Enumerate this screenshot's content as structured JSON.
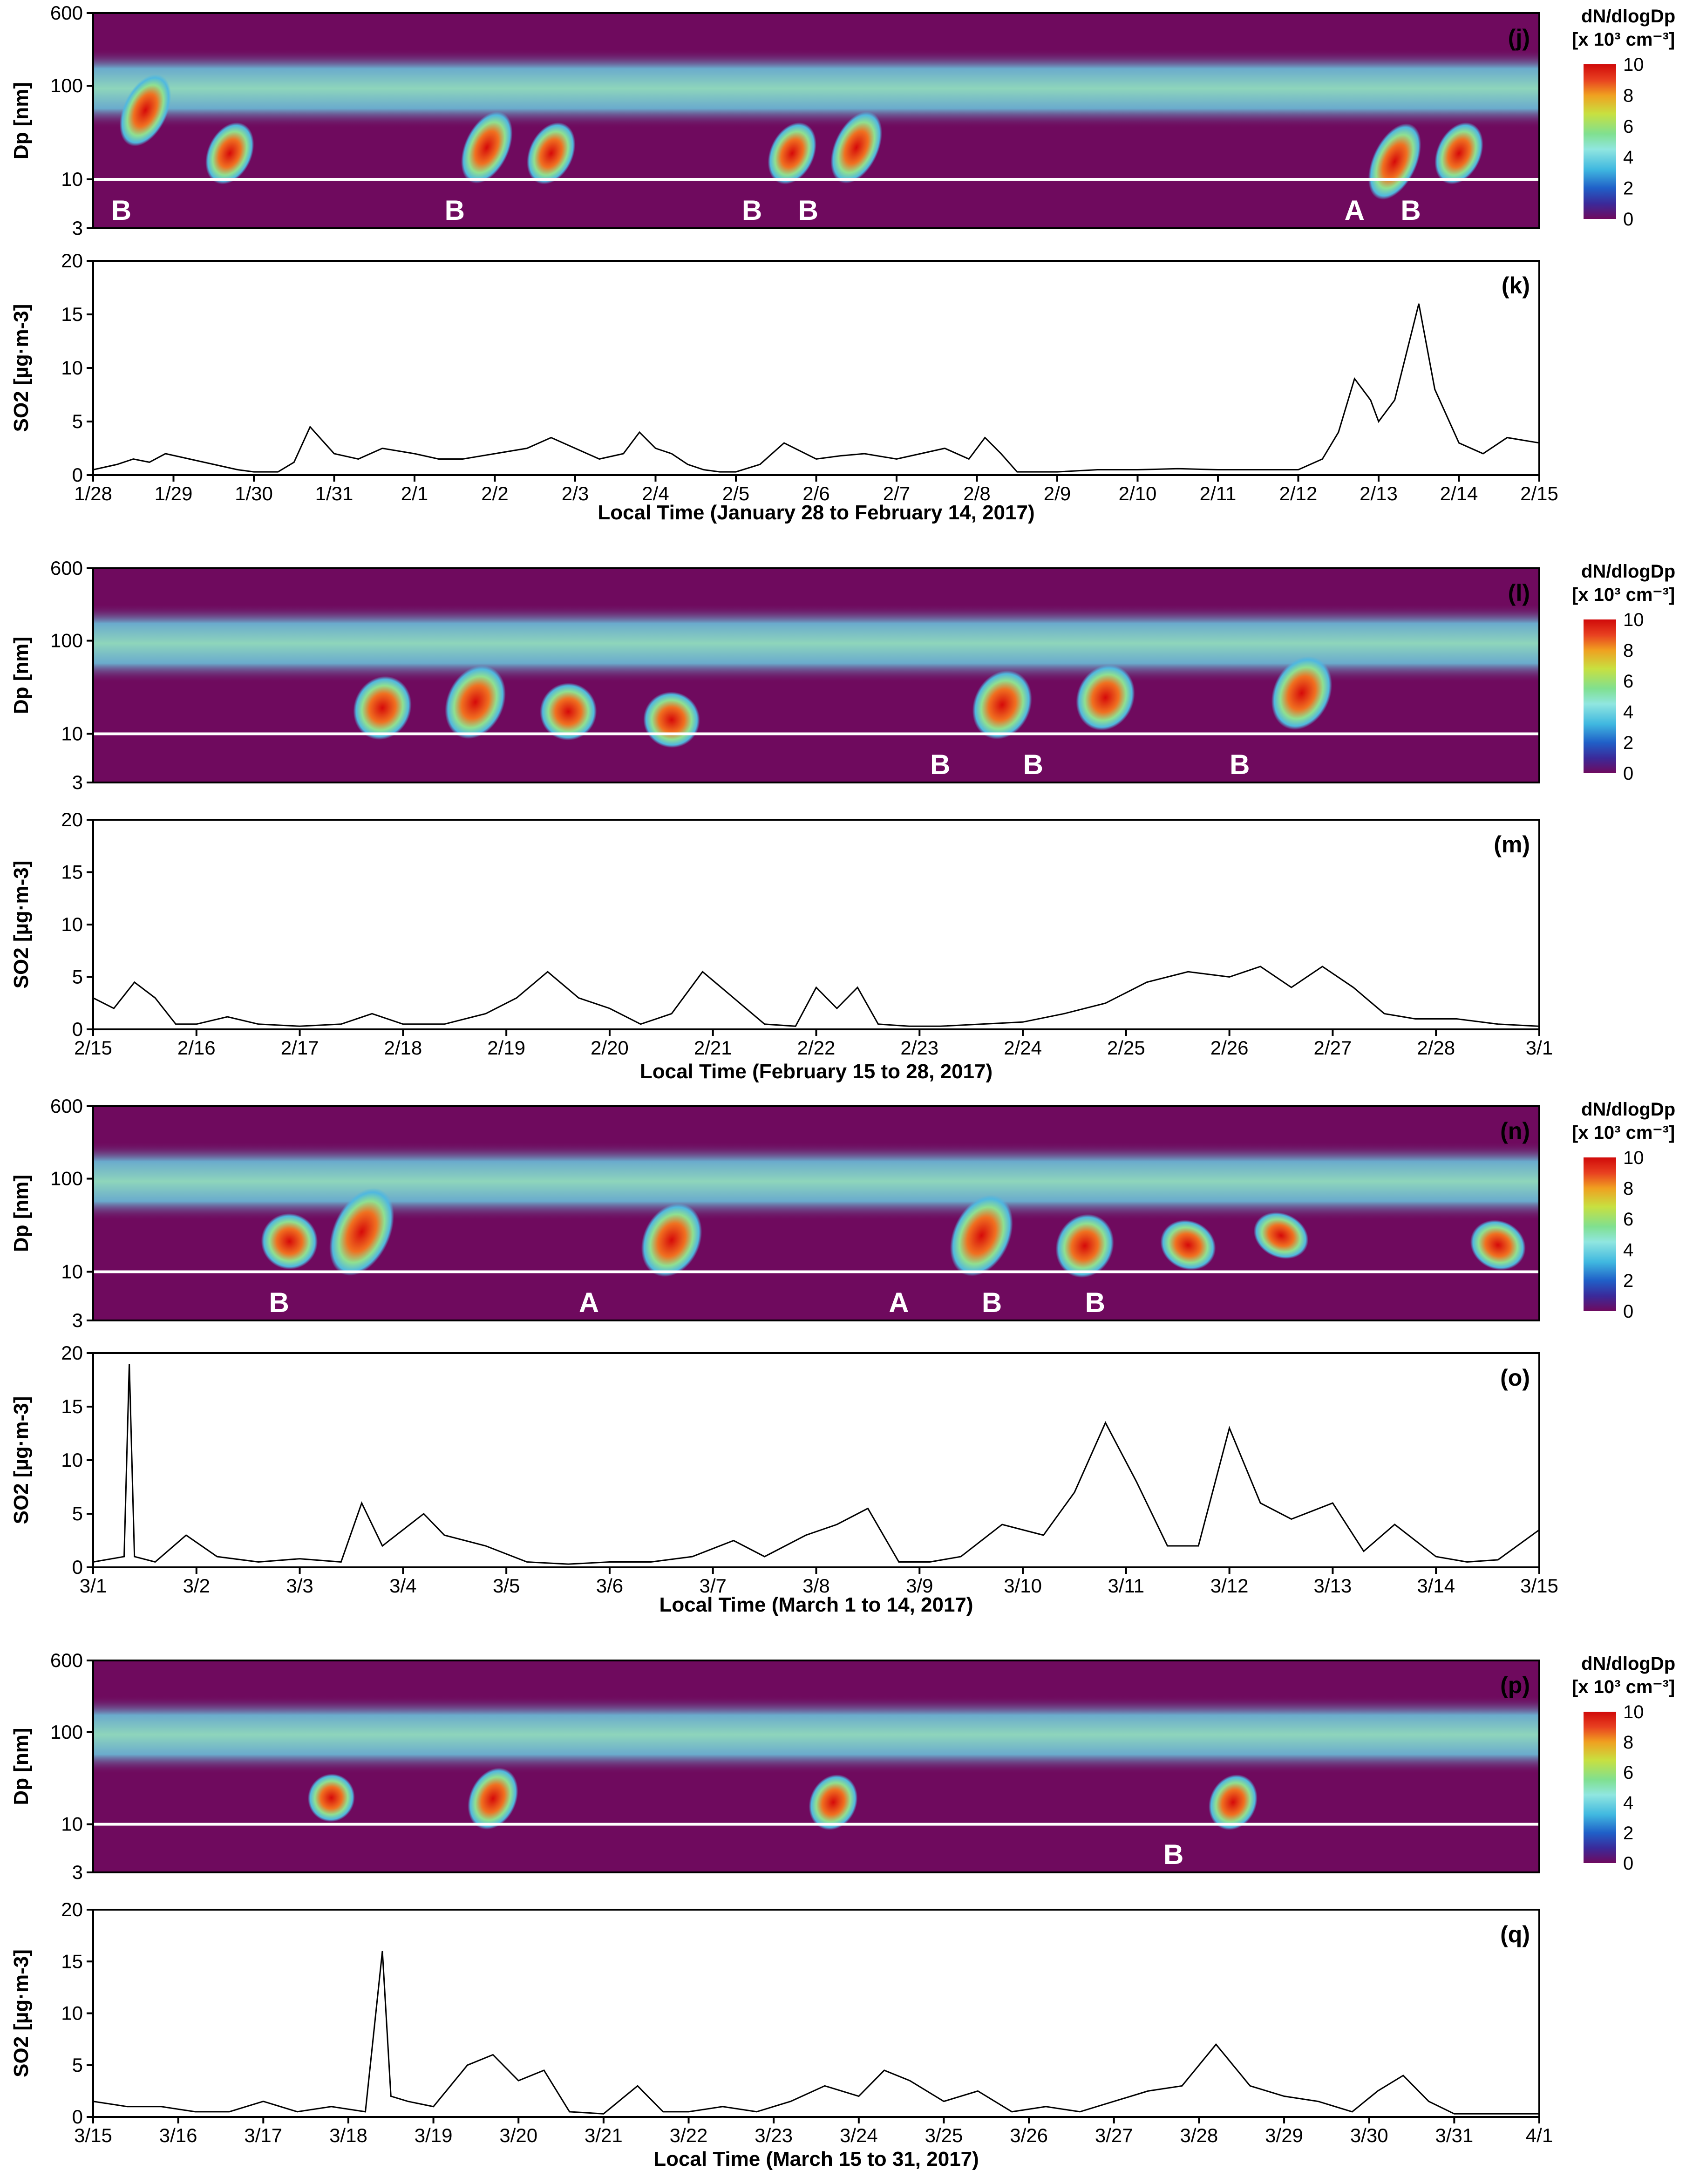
{
  "figure": {
    "psd_ylabel": "Dp [nm]",
    "psd_yticks": [
      600,
      100,
      10,
      3
    ],
    "so2_ylabel": "SO2 [µg·m-3]",
    "so2_yticks": [
      20,
      15,
      10,
      5,
      0
    ],
    "colorbar": {
      "title_line1": "dN/dlogDp",
      "title_line2": "[x 10³ cm⁻³]",
      "ticks": [
        10,
        8,
        6,
        4,
        2,
        0
      ],
      "colors": [
        "#6f0a5e",
        "#4a2a8f",
        "#1f5fbf",
        "#3fb0d8",
        "#8fe0e0",
        "#9fe09a",
        "#d8e04a",
        "#f0b020",
        "#e85020",
        "#d01010"
      ]
    },
    "colors": {
      "background": "#6f0a5e",
      "mode": "#7fd8d8",
      "event": "#d81414",
      "gap": "#ffffff"
    }
  },
  "chart_data": [
    {
      "type": "heatmap",
      "panel_label": "(j)",
      "ylabel": "Dp [nm]",
      "ylim": [
        3,
        600
      ],
      "x_days": 18,
      "events": [
        {
          "label": "B",
          "day": 0.35
        },
        {
          "label": "B",
          "day": 4.5
        },
        {
          "label": "B",
          "day": 8.2
        },
        {
          "label": "B",
          "day": 8.9
        },
        {
          "label": "A",
          "day": 15.7
        },
        {
          "label": "B",
          "day": 16.4
        }
      ],
      "growth_events": [
        {
          "day": 0.65,
          "peak": [
            30,
            100
          ]
        },
        {
          "day": 1.7,
          "peak": [
            12,
            30
          ]
        },
        {
          "day": 4.9,
          "peak": [
            12,
            40
          ]
        },
        {
          "day": 5.7,
          "peak": [
            12,
            30
          ]
        },
        {
          "day": 8.7,
          "peak": [
            12,
            30
          ]
        },
        {
          "day": 9.5,
          "peak": [
            12,
            40
          ]
        },
        {
          "day": 16.2,
          "peak": [
            8,
            30
          ]
        },
        {
          "day": 17.0,
          "peak": [
            12,
            30
          ]
        }
      ]
    },
    {
      "type": "line",
      "panel_label": "(k)",
      "ylabel": "SO2 [µg·m-3]",
      "ylim": [
        0,
        20
      ],
      "xlabel": "Local Time (January 28 to February 14, 2017)",
      "x_tick_labels": [
        "1/28",
        "1/29",
        "1/30",
        "1/31",
        "2/1",
        "2/2",
        "2/3",
        "2/4",
        "2/5",
        "2/6",
        "2/7",
        "2/8",
        "2/9",
        "2/10",
        "2/11",
        "2/12",
        "2/13",
        "2/14",
        "2/15"
      ],
      "x": [
        0,
        0.3,
        0.5,
        0.7,
        0.9,
        1.2,
        1.5,
        1.8,
        2.0,
        2.3,
        2.5,
        2.7,
        3.0,
        3.3,
        3.6,
        4.0,
        4.3,
        4.6,
        5.0,
        5.4,
        5.7,
        6.0,
        6.3,
        6.6,
        6.8,
        7.0,
        7.2,
        7.4,
        7.6,
        7.8,
        8.0,
        8.3,
        8.6,
        9.0,
        9.3,
        9.6,
        10.0,
        10.3,
        10.6,
        10.9,
        11.1,
        11.3,
        11.5,
        12.0,
        12.5,
        13.0,
        13.5,
        14.0,
        14.5,
        15.0,
        15.3,
        15.5,
        15.7,
        15.9,
        16.0,
        16.2,
        16.3,
        16.5,
        16.7,
        17.0,
        17.3,
        17.6,
        18.0
      ],
      "y": [
        0.5,
        1.0,
        1.5,
        1.2,
        2.0,
        1.5,
        1.0,
        0.5,
        0.3,
        0.3,
        1.2,
        4.5,
        2.0,
        1.5,
        2.5,
        2.0,
        1.5,
        1.5,
        2.0,
        2.5,
        3.5,
        2.5,
        1.5,
        2.0,
        4.0,
        2.5,
        2.0,
        1.0,
        0.5,
        0.3,
        0.3,
        1.0,
        3.0,
        1.5,
        1.8,
        2.0,
        1.5,
        2.0,
        2.5,
        1.5,
        3.5,
        2.0,
        0.3,
        0.3,
        0.5,
        0.5,
        0.6,
        0.5,
        0.5,
        0.5,
        1.5,
        4.0,
        9.0,
        7.0,
        5.0,
        7.0,
        10.0,
        16.0,
        8.0,
        3.0,
        2.0,
        3.5,
        3.0
      ]
    },
    {
      "type": "heatmap",
      "panel_label": "(l)",
      "ylabel": "Dp [nm]",
      "ylim": [
        3,
        600
      ],
      "x_days": 14,
      "events": [
        {
          "label": "B",
          "day": 8.2
        },
        {
          "label": "B",
          "day": 9.1
        },
        {
          "label": "B",
          "day": 11.1
        }
      ],
      "growth_events": [
        {
          "day": 2.8,
          "peak": [
            12,
            30
          ]
        },
        {
          "day": 3.7,
          "peak": [
            12,
            40
          ]
        },
        {
          "day": 4.6,
          "peak": [
            12,
            25
          ]
        },
        {
          "day": 5.6,
          "peak": [
            10,
            20
          ]
        },
        {
          "day": 8.8,
          "peak": [
            12,
            35
          ]
        },
        {
          "day": 9.8,
          "peak": [
            15,
            40
          ]
        },
        {
          "day": 11.7,
          "peak": [
            15,
            50
          ]
        }
      ]
    },
    {
      "type": "line",
      "panel_label": "(m)",
      "ylabel": "SO2 [µg·m-3]",
      "ylim": [
        0,
        20
      ],
      "xlabel": "Local Time (February 15 to 28, 2017)",
      "x_tick_labels": [
        "2/15",
        "2/16",
        "2/17",
        "2/18",
        "2/19",
        "2/20",
        "2/21",
        "2/22",
        "2/23",
        "2/24",
        "2/25",
        "2/26",
        "2/27",
        "2/28",
        "3/1"
      ],
      "x": [
        0,
        0.2,
        0.4,
        0.6,
        0.8,
        1.0,
        1.3,
        1.6,
        2.0,
        2.4,
        2.7,
        3.0,
        3.4,
        3.8,
        4.1,
        4.4,
        4.7,
        5.0,
        5.3,
        5.6,
        5.9,
        6.2,
        6.5,
        6.8,
        7.0,
        7.2,
        7.4,
        7.6,
        7.9,
        8.2,
        8.6,
        9.0,
        9.4,
        9.8,
        10.2,
        10.6,
        11.0,
        11.3,
        11.6,
        11.9,
        12.2,
        12.5,
        12.8,
        13.2,
        13.6,
        14.0
      ],
      "y": [
        3.0,
        2.0,
        4.5,
        3.0,
        0.5,
        0.5,
        1.2,
        0.5,
        0.3,
        0.5,
        1.5,
        0.5,
        0.5,
        1.5,
        3.0,
        5.5,
        3.0,
        2.0,
        0.5,
        1.5,
        5.5,
        3.0,
        0.5,
        0.3,
        4.0,
        2.0,
        4.0,
        0.5,
        0.3,
        0.3,
        0.5,
        0.7,
        1.5,
        2.5,
        4.5,
        5.5,
        5.0,
        6.0,
        4.0,
        6.0,
        4.0,
        1.5,
        1.0,
        1.0,
        0.5,
        0.3
      ]
    },
    {
      "type": "heatmap",
      "panel_label": "(n)",
      "ylabel": "Dp [nm]",
      "ylim": [
        3,
        600
      ],
      "x_days": 14,
      "events": [
        {
          "label": "B",
          "day": 1.8
        },
        {
          "label": "A",
          "day": 4.8
        },
        {
          "label": "A",
          "day": 7.8
        },
        {
          "label": "B",
          "day": 8.7
        },
        {
          "label": "B",
          "day": 9.7
        }
      ],
      "growth_events": [
        {
          "day": 1.9,
          "peak": [
            15,
            30
          ]
        },
        {
          "day": 2.6,
          "peak": [
            12,
            60
          ]
        },
        {
          "day": 5.6,
          "peak": [
            12,
            40
          ]
        },
        {
          "day": 8.6,
          "peak": [
            12,
            50
          ]
        },
        {
          "day": 9.6,
          "peak": [
            12,
            30
          ]
        },
        {
          "day": 10.6,
          "peak": [
            15,
            25
          ]
        },
        {
          "day": 11.5,
          "peak": [
            20,
            30
          ]
        },
        {
          "day": 13.6,
          "peak": [
            15,
            25
          ]
        }
      ]
    },
    {
      "type": "line",
      "panel_label": "(o)",
      "ylabel": "SO2 [µg·m-3]",
      "ylim": [
        0,
        20
      ],
      "xlabel": "Local Time (March 1 to 14, 2017)",
      "x_tick_labels": [
        "3/1",
        "3/2",
        "3/3",
        "3/4",
        "3/5",
        "3/6",
        "3/7",
        "3/8",
        "3/9",
        "3/10",
        "3/11",
        "3/12",
        "3/13",
        "3/14",
        "3/15"
      ],
      "x": [
        0,
        0.3,
        0.35,
        0.4,
        0.6,
        0.9,
        1.2,
        1.6,
        2.0,
        2.4,
        2.6,
        2.8,
        3.2,
        3.4,
        3.8,
        4.2,
        4.6,
        5.0,
        5.4,
        5.8,
        6.2,
        6.5,
        6.9,
        7.2,
        7.5,
        7.8,
        8.1,
        8.4,
        8.8,
        9.2,
        9.5,
        9.8,
        10.1,
        10.4,
        10.7,
        11.0,
        11.3,
        11.6,
        12.0,
        12.3,
        12.6,
        13.0,
        13.3,
        13.6,
        14.0
      ],
      "y": [
        0.5,
        1.0,
        19.0,
        1.0,
        0.5,
        3.0,
        1.0,
        0.5,
        0.8,
        0.5,
        6.0,
        2.0,
        5.0,
        3.0,
        2.0,
        0.5,
        0.3,
        0.5,
        0.5,
        1.0,
        2.5,
        1.0,
        3.0,
        4.0,
        5.5,
        0.5,
        0.5,
        1.0,
        4.0,
        3.0,
        7.0,
        13.5,
        8.0,
        2.0,
        2.0,
        13.0,
        6.0,
        4.5,
        6.0,
        1.5,
        4.0,
        1.0,
        0.5,
        0.7,
        3.5
      ]
    },
    {
      "type": "heatmap",
      "panel_label": "(p)",
      "ylabel": "Dp [nm]",
      "ylim": [
        3,
        600
      ],
      "x_days": 17,
      "events": [
        {
          "label": "B",
          "day": 12.7
        }
      ],
      "growth_events": [
        {
          "day": 2.8,
          "peak": [
            15,
            25
          ]
        },
        {
          "day": 4.7,
          "peak": [
            12,
            30
          ]
        },
        {
          "day": 8.7,
          "peak": [
            12,
            25
          ]
        },
        {
          "day": 13.4,
          "peak": [
            12,
            25
          ]
        }
      ]
    },
    {
      "type": "line",
      "panel_label": "(q)",
      "ylabel": "SO2 [µg·m-3]",
      "ylim": [
        0,
        20
      ],
      "xlabel": "Local Time (March 15 to 31, 2017)",
      "x_tick_labels": [
        "3/15",
        "3/16",
        "3/17",
        "3/18",
        "3/19",
        "3/20",
        "3/21",
        "3/22",
        "3/23",
        "3/24",
        "3/25",
        "3/26",
        "3/27",
        "3/28",
        "3/29",
        "3/30",
        "3/31",
        "4/1"
      ],
      "x": [
        0,
        0.4,
        0.8,
        1.2,
        1.6,
        2.0,
        2.4,
        2.8,
        3.2,
        3.4,
        3.5,
        3.7,
        4.0,
        4.4,
        4.7,
        5.0,
        5.3,
        5.6,
        6.0,
        6.4,
        6.7,
        7.0,
        7.4,
        7.8,
        8.2,
        8.6,
        9.0,
        9.3,
        9.6,
        10.0,
        10.4,
        10.8,
        11.2,
        11.6,
        12.0,
        12.4,
        12.8,
        13.2,
        13.6,
        14.0,
        14.4,
        14.8,
        15.1,
        15.4,
        15.7,
        16.0,
        16.5,
        17.0
      ],
      "y": [
        1.5,
        1.0,
        1.0,
        0.5,
        0.5,
        1.5,
        0.5,
        1.0,
        0.5,
        16.0,
        2.0,
        1.5,
        1.0,
        5.0,
        6.0,
        3.5,
        4.5,
        0.5,
        0.3,
        3.0,
        0.5,
        0.5,
        1.0,
        0.5,
        1.5,
        3.0,
        2.0,
        4.5,
        3.5,
        1.5,
        2.5,
        0.5,
        1.0,
        0.5,
        1.5,
        2.5,
        3.0,
        7.0,
        3.0,
        2.0,
        1.5,
        0.5,
        2.5,
        4.0,
        1.5,
        0.3,
        0.3,
        0.3
      ]
    }
  ]
}
